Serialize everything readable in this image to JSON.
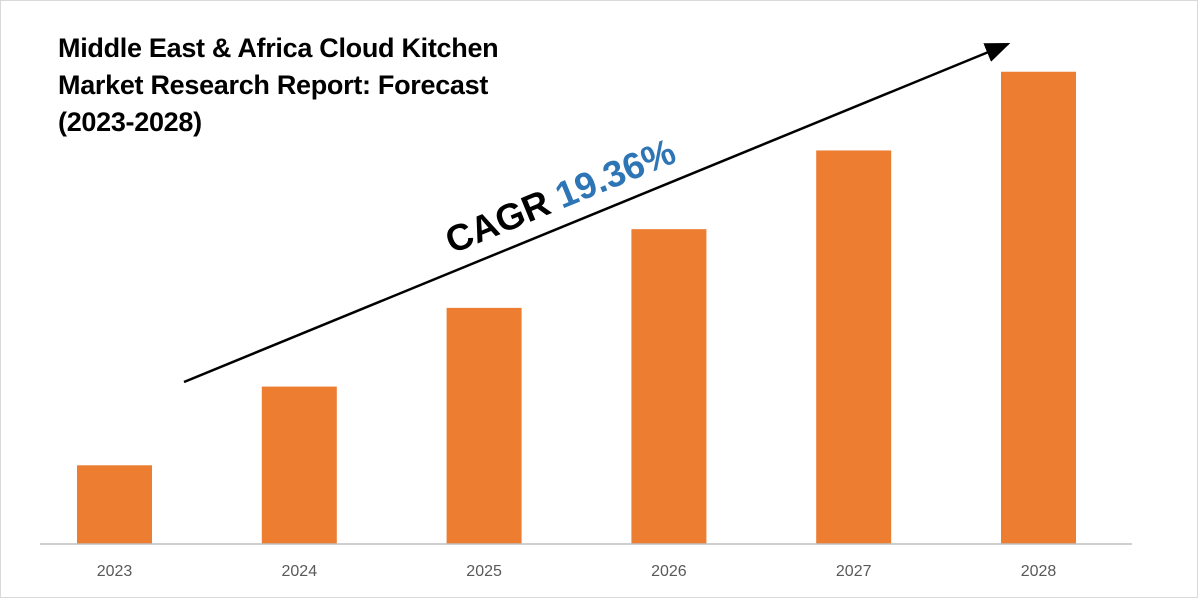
{
  "title_lines": [
    "Middle East & Africa Cloud Kitchen",
    "Market Research Report: Forecast",
    "(2023-2028)"
  ],
  "cagr": {
    "label": "CAGR",
    "value": "19.36%"
  },
  "colors": {
    "bar": "#ED7D31",
    "cagr_value": "#2E75B6",
    "axis": "#BFBFBF",
    "text": "#000000",
    "tick": "#595959"
  },
  "chart_data": {
    "type": "bar",
    "categories": [
      "2023",
      "2024",
      "2025",
      "2026",
      "2027",
      "2028"
    ],
    "values": [
      1.0,
      2.0,
      3.0,
      4.0,
      5.0,
      6.0
    ],
    "ylim": [
      0,
      6.2
    ],
    "grid": false,
    "legend": "none",
    "annotations": [
      "CAGR 19.36%"
    ]
  }
}
